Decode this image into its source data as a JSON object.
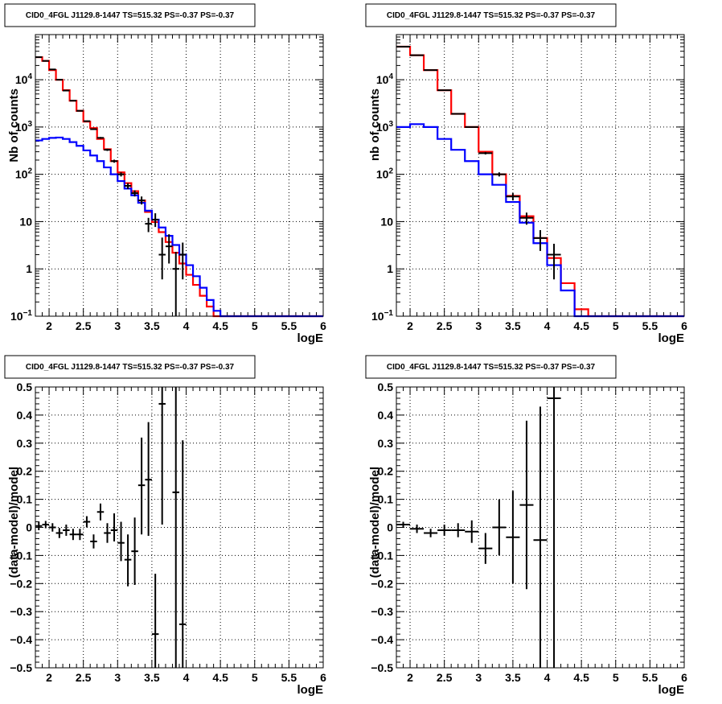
{
  "chart_data": [
    {
      "type": "line",
      "title": "CID0_4FGL J1129.8-1447 TS=515.32 PS=-0.37 PS=-0.37",
      "xlabel": "logE",
      "ylabel": "Nb of counts",
      "xlim": [
        1.8,
        6.0
      ],
      "ylim": [
        0.1,
        90000
      ],
      "yscale": "log",
      "grid": true,
      "x_ticks": [
        "2",
        "2.5",
        "3",
        "3.5",
        "4",
        "4.5",
        "5",
        "5.5",
        "6"
      ],
      "y_ticks": [
        {
          "value": 0.1,
          "base": "10",
          "exp": "−1"
        },
        {
          "value": 1,
          "base": "1",
          "exp": ""
        },
        {
          "value": 10,
          "base": "10",
          "exp": ""
        },
        {
          "value": 100,
          "base": "10",
          "exp": "2"
        },
        {
          "value": 1000,
          "base": "10",
          "exp": "3"
        },
        {
          "value": 10000,
          "base": "10",
          "exp": "4"
        }
      ],
      "bin_edges": [
        1.8,
        1.9,
        2.0,
        2.1,
        2.2,
        2.3,
        2.4,
        2.5,
        2.6,
        2.7,
        2.8,
        2.9,
        3.0,
        3.1,
        3.2,
        3.3,
        3.4,
        3.5,
        3.6,
        3.7,
        3.8,
        3.9,
        4.0,
        4.1,
        4.2,
        4.3,
        4.4,
        4.5,
        4.6,
        4.7,
        4.8,
        4.9,
        5.0,
        5.1,
        5.2,
        5.3,
        5.4,
        5.5,
        5.6,
        5.7,
        5.8,
        5.9,
        6.0
      ],
      "series": [
        {
          "color": "#ff0000",
          "values": [
            30000,
            25000,
            16000,
            10000,
            6000,
            3600,
            2200,
            1300,
            950,
            560,
            340,
            190,
            110,
            65,
            44,
            28,
            16,
            9.8,
            6,
            3.7,
            2.2,
            1.3,
            0.75,
            0.46,
            0.27,
            0.16,
            0.1,
            0.1,
            0.1,
            0.1,
            0.1,
            0.1,
            0.1,
            0.1,
            0.1,
            0.1,
            0.1,
            0.1,
            0.1,
            0.1,
            0.1,
            0.1
          ]
        },
        {
          "color": "#0000ff",
          "values": [
            520,
            560,
            590,
            600,
            560,
            480,
            400,
            320,
            250,
            190,
            140,
            100,
            72,
            50,
            36,
            25,
            17,
            11,
            7.5,
            5,
            3.2,
            2.0,
            1.2,
            0.7,
            0.4,
            0.22,
            0.13,
            0.1,
            0.1,
            0.1,
            0.1,
            0.1,
            0.1,
            0.1,
            0.1,
            0.1,
            0.1,
            0.1,
            0.1,
            0.1,
            0.1,
            0.1
          ]
        }
      ],
      "points": [
        {
          "x": 1.85,
          "y": 30000,
          "xerr": 0.05,
          "ylo": 29700,
          "yhi": 30300
        },
        {
          "x": 1.95,
          "y": 25000,
          "xerr": 0.05,
          "ylo": 24700,
          "yhi": 25300
        },
        {
          "x": 2.05,
          "y": 16500,
          "xerr": 0.05,
          "ylo": 16200,
          "yhi": 16800
        },
        {
          "x": 2.15,
          "y": 10000,
          "xerr": 0.05,
          "ylo": 9800,
          "yhi": 10200
        },
        {
          "x": 2.25,
          "y": 5900,
          "xerr": 0.05,
          "ylo": 5800,
          "yhi": 6000
        },
        {
          "x": 2.35,
          "y": 3600,
          "xerr": 0.05,
          "ylo": 3540,
          "yhi": 3660
        },
        {
          "x": 2.45,
          "y": 2200,
          "xerr": 0.05,
          "ylo": 2150,
          "yhi": 2250
        },
        {
          "x": 2.55,
          "y": 1330,
          "xerr": 0.05,
          "ylo": 1300,
          "yhi": 1360
        },
        {
          "x": 2.65,
          "y": 900,
          "xerr": 0.05,
          "ylo": 870,
          "yhi": 930
        },
        {
          "x": 2.75,
          "y": 590,
          "xerr": 0.05,
          "ylo": 565,
          "yhi": 615
        },
        {
          "x": 2.85,
          "y": 330,
          "xerr": 0.05,
          "ylo": 312,
          "yhi": 348
        },
        {
          "x": 2.95,
          "y": 190,
          "xerr": 0.05,
          "ylo": 176,
          "yhi": 204
        },
        {
          "x": 3.05,
          "y": 100,
          "xerr": 0.05,
          "ylo": 90,
          "yhi": 110
        },
        {
          "x": 3.15,
          "y": 57,
          "xerr": 0.05,
          "ylo": 49,
          "yhi": 65
        },
        {
          "x": 3.25,
          "y": 40,
          "xerr": 0.05,
          "ylo": 34,
          "yhi": 46
        },
        {
          "x": 3.35,
          "y": 28,
          "xerr": 0.05,
          "ylo": 23,
          "yhi": 34
        },
        {
          "x": 3.45,
          "y": 9,
          "xerr": 0.05,
          "ylo": 6,
          "yhi": 12
        },
        {
          "x": 3.55,
          "y": 11,
          "xerr": 0.05,
          "ylo": 7.7,
          "yhi": 15
        },
        {
          "x": 3.65,
          "y": 2.0,
          "xerr": 0.05,
          "ylo": 0.6,
          "yhi": 4.6
        },
        {
          "x": 3.75,
          "y": 3.0,
          "xerr": 0.05,
          "ylo": 1.3,
          "yhi": 5.4
        },
        {
          "x": 3.85,
          "y": 1.0,
          "xerr": 0.05,
          "ylo": 0.1,
          "yhi": 2.3
        },
        {
          "x": 3.95,
          "y": 2.0,
          "xerr": 0.05,
          "ylo": 0.6,
          "yhi": 3.6
        }
      ]
    },
    {
      "type": "line",
      "title": "CID0_4FGL J1129.8-1447 TS=515.32 PS=-0.37 PS=-0.37",
      "xlabel": "logE",
      "ylabel": "nb of counts",
      "xlim": [
        1.8,
        6.0
      ],
      "ylim": [
        0.1,
        90000
      ],
      "yscale": "log",
      "grid": true,
      "x_ticks": [
        "2",
        "2.5",
        "3",
        "3.5",
        "4",
        "4.5",
        "5",
        "5.5",
        "6"
      ],
      "y_ticks": [
        {
          "value": 0.1,
          "base": "10",
          "exp": "−1"
        },
        {
          "value": 1,
          "base": "1",
          "exp": ""
        },
        {
          "value": 10,
          "base": "10",
          "exp": ""
        },
        {
          "value": 100,
          "base": "10",
          "exp": "2"
        },
        {
          "value": 1000,
          "base": "10",
          "exp": "3"
        },
        {
          "value": 10000,
          "base": "10",
          "exp": "4"
        }
      ],
      "bin_edges": [
        1.8,
        2.0,
        2.2,
        2.4,
        2.6,
        2.8,
        3.0,
        3.2,
        3.4,
        3.6,
        3.8,
        4.0,
        4.2,
        4.4,
        4.6,
        4.8,
        5.0,
        5.2,
        5.4,
        5.6,
        5.8,
        6.0
      ],
      "series": [
        {
          "color": "#ff0000",
          "values": [
            50000,
            33000,
            16000,
            6000,
            1900,
            1000,
            300,
            100,
            35,
            13,
            4.5,
            1.7,
            0.5,
            0.14,
            0.1,
            0.1,
            0.1,
            0.1,
            0.1,
            0.1,
            0.1
          ]
        },
        {
          "color": "#0000ff",
          "values": [
            1000,
            1150,
            1000,
            560,
            330,
            190,
            100,
            60,
            26,
            9.5,
            3.5,
            1.2,
            0.35,
            0.1,
            0.1,
            0.1,
            0.1,
            0.1,
            0.1,
            0.1,
            0.1
          ]
        }
      ],
      "points": [
        {
          "x": 1.9,
          "y": 50000,
          "xerr": 0.1,
          "ylo": 49600,
          "yhi": 50400
        },
        {
          "x": 2.1,
          "y": 33000,
          "xerr": 0.1,
          "ylo": 32700,
          "yhi": 33300
        },
        {
          "x": 2.3,
          "y": 16000,
          "xerr": 0.1,
          "ylo": 15800,
          "yhi": 16200
        },
        {
          "x": 2.5,
          "y": 6000,
          "xerr": 0.1,
          "ylo": 5900,
          "yhi": 6100
        },
        {
          "x": 2.7,
          "y": 1900,
          "xerr": 0.1,
          "ylo": 1860,
          "yhi": 1940
        },
        {
          "x": 2.9,
          "y": 1000,
          "xerr": 0.1,
          "ylo": 970,
          "yhi": 1030
        },
        {
          "x": 3.1,
          "y": 280,
          "xerr": 0.1,
          "ylo": 263,
          "yhi": 297
        },
        {
          "x": 3.3,
          "y": 100,
          "xerr": 0.1,
          "ylo": 90,
          "yhi": 110
        },
        {
          "x": 3.5,
          "y": 34,
          "xerr": 0.1,
          "ylo": 28,
          "yhi": 40
        },
        {
          "x": 3.7,
          "y": 12,
          "xerr": 0.1,
          "ylo": 8.6,
          "yhi": 15.5
        },
        {
          "x": 3.9,
          "y": 4.5,
          "xerr": 0.1,
          "ylo": 2.4,
          "yhi": 6.6
        },
        {
          "x": 4.1,
          "y": 2.0,
          "xerr": 0.1,
          "ylo": 0.6,
          "yhi": 3.4
        }
      ]
    },
    {
      "type": "scatter",
      "title": "CID0_4FGL J1129.8-1447 TS=515.32 PS=-0.37 PS=-0.37",
      "xlabel": "logE",
      "ylabel": "(data-model)/model",
      "xlim": [
        1.8,
        6.0
      ],
      "ylim": [
        -0.5,
        0.5
      ],
      "grid": true,
      "x_ticks": [
        "2",
        "2.5",
        "3",
        "3.5",
        "4",
        "4.5",
        "5",
        "5.5",
        "6"
      ],
      "y_ticks": [
        "−0.5",
        "−0.4",
        "−0.3",
        "−0.2",
        "−0.1",
        "0",
        "0.1",
        "0.2",
        "0.3",
        "0.4",
        "0.5"
      ],
      "points": [
        {
          "x": 1.85,
          "y": 0.005,
          "xerr": 0.05,
          "ylo": -0.01,
          "yhi": 0.02
        },
        {
          "x": 1.95,
          "y": 0.01,
          "xerr": 0.05,
          "ylo": -0.003,
          "yhi": 0.023
        },
        {
          "x": 2.05,
          "y": 0.0,
          "xerr": 0.05,
          "ylo": -0.015,
          "yhi": 0.015
        },
        {
          "x": 2.15,
          "y": -0.02,
          "xerr": 0.05,
          "ylo": -0.038,
          "yhi": -0.002
        },
        {
          "x": 2.25,
          "y": -0.01,
          "xerr": 0.05,
          "ylo": -0.03,
          "yhi": 0.01
        },
        {
          "x": 2.35,
          "y": -0.025,
          "xerr": 0.05,
          "ylo": -0.045,
          "yhi": -0.005
        },
        {
          "x": 2.45,
          "y": -0.025,
          "xerr": 0.05,
          "ylo": -0.045,
          "yhi": -0.005
        },
        {
          "x": 2.55,
          "y": 0.02,
          "xerr": 0.05,
          "ylo": 0.0,
          "yhi": 0.04
        },
        {
          "x": 2.65,
          "y": -0.05,
          "xerr": 0.05,
          "ylo": -0.075,
          "yhi": -0.025
        },
        {
          "x": 2.75,
          "y": 0.055,
          "xerr": 0.05,
          "ylo": 0.025,
          "yhi": 0.085
        },
        {
          "x": 2.85,
          "y": -0.02,
          "xerr": 0.05,
          "ylo": -0.055,
          "yhi": 0.015
        },
        {
          "x": 2.95,
          "y": -0.01,
          "xerr": 0.05,
          "ylo": -0.05,
          "yhi": 0.05
        },
        {
          "x": 3.05,
          "y": -0.055,
          "xerr": 0.05,
          "ylo": -0.12,
          "yhi": 0.02
        },
        {
          "x": 3.15,
          "y": -0.115,
          "xerr": 0.05,
          "ylo": -0.21,
          "yhi": -0.025
        },
        {
          "x": 3.25,
          "y": -0.085,
          "xerr": 0.05,
          "ylo": -0.205,
          "yhi": 0.035
        },
        {
          "x": 3.35,
          "y": 0.15,
          "xerr": 0.05,
          "ylo": -0.025,
          "yhi": 0.32
        },
        {
          "x": 3.45,
          "y": 0.17,
          "xerr": 0.05,
          "ylo": -0.03,
          "yhi": 0.375
        },
        {
          "x": 3.55,
          "y": -0.38,
          "xerr": 0.05,
          "ylo": -0.5,
          "yhi": -0.165
        },
        {
          "x": 3.65,
          "y": 0.44,
          "xerr": 0.05,
          "ylo": 0.01,
          "yhi": 0.5
        },
        {
          "x": 3.85,
          "y": 0.125,
          "xerr": 0.05,
          "ylo": -0.5,
          "yhi": 0.5
        },
        {
          "x": 3.95,
          "y": -0.345,
          "xerr": 0.05,
          "ylo": -0.5,
          "yhi": 0.31
        }
      ]
    },
    {
      "type": "scatter",
      "title": "CID0_4FGL J1129.8-1447 TS=515.32 PS=-0.37 PS=-0.37",
      "xlabel": "logE",
      "ylabel": "(data-model)/model",
      "xlim": [
        1.8,
        6.0
      ],
      "ylim": [
        -0.5,
        0.5
      ],
      "grid": true,
      "x_ticks": [
        "2",
        "2.5",
        "3",
        "3.5",
        "4",
        "4.5",
        "5",
        "5.5",
        "6"
      ],
      "y_ticks": [
        "−0.5",
        "−0.4",
        "−0.3",
        "−0.2",
        "−0.1",
        "0",
        "0.1",
        "0.2",
        "0.3",
        "0.4",
        "0.5"
      ],
      "points": [
        {
          "x": 1.9,
          "y": 0.01,
          "xerr": 0.1,
          "ylo": 0.0,
          "yhi": 0.02
        },
        {
          "x": 2.1,
          "y": -0.005,
          "xerr": 0.1,
          "ylo": -0.02,
          "yhi": 0.01
        },
        {
          "x": 2.3,
          "y": -0.02,
          "xerr": 0.1,
          "ylo": -0.035,
          "yhi": -0.005
        },
        {
          "x": 2.5,
          "y": -0.01,
          "xerr": 0.1,
          "ylo": -0.03,
          "yhi": 0.01
        },
        {
          "x": 2.7,
          "y": -0.01,
          "xerr": 0.1,
          "ylo": -0.035,
          "yhi": 0.015
        },
        {
          "x": 2.9,
          "y": -0.015,
          "xerr": 0.1,
          "ylo": -0.055,
          "yhi": 0.025
        },
        {
          "x": 3.1,
          "y": -0.075,
          "xerr": 0.1,
          "ylo": -0.13,
          "yhi": -0.02
        },
        {
          "x": 3.3,
          "y": 0.0,
          "xerr": 0.1,
          "ylo": -0.1,
          "yhi": 0.1
        },
        {
          "x": 3.5,
          "y": -0.035,
          "xerr": 0.1,
          "ylo": -0.2,
          "yhi": 0.13
        },
        {
          "x": 3.7,
          "y": 0.08,
          "xerr": 0.1,
          "ylo": -0.22,
          "yhi": 0.38
        },
        {
          "x": 3.9,
          "y": -0.045,
          "xerr": 0.1,
          "ylo": -0.5,
          "yhi": 0.43
        },
        {
          "x": 4.1,
          "y": 0.46,
          "xerr": 0.1,
          "ylo": -0.5,
          "yhi": 0.5
        }
      ]
    }
  ]
}
